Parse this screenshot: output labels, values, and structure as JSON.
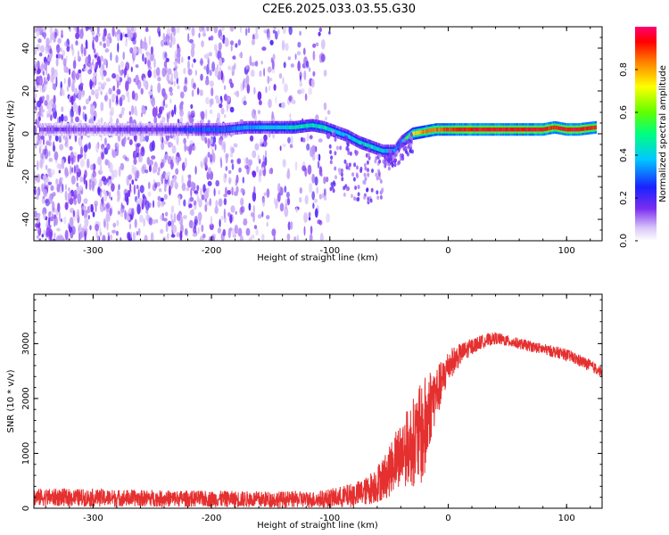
{
  "title": "C2E6.2025.033.03.55.G30",
  "colorbar": {
    "label": "Normalized spectral amplitude",
    "ticks": [
      "0.0",
      "0.2",
      "0.4",
      "0.6",
      "0.8"
    ],
    "tick_values": [
      0.0,
      0.2,
      0.4,
      0.6,
      0.8
    ],
    "range": [
      0,
      1
    ]
  },
  "colors": {
    "snr_line": "#e53030",
    "spectro_low": "#e8dcf8",
    "spectro_mid": "#7b2ff0"
  },
  "chart_data": [
    {
      "type": "heatmap",
      "name": "spectrogram",
      "xlabel": "Height of straight line (km)",
      "ylabel": "Frequency (Hz)",
      "xlim": [
        -350,
        130
      ],
      "ylim": [
        -50,
        50
      ],
      "x_ticks": [
        -300,
        -200,
        -100,
        0,
        100
      ],
      "x_tick_labels": [
        "-300",
        "-200",
        "-100",
        "0",
        "100"
      ],
      "y_ticks": [
        -40,
        -20,
        0,
        20,
        40
      ],
      "y_tick_labels": [
        "-40",
        "-20",
        "0",
        "20",
        "40"
      ],
      "noise_extent_x": [
        -350,
        -100
      ],
      "ridge": {
        "x": [
          -345,
          -330,
          -310,
          -290,
          -270,
          -250,
          -230,
          -210,
          -190,
          -170,
          -150,
          -130,
          -115,
          -105,
          -95,
          -85,
          -75,
          -65,
          -55,
          -45,
          -40,
          -35,
          -30,
          -20,
          -10,
          0,
          20,
          40,
          60,
          80,
          90,
          100,
          110,
          125
        ],
        "freq": [
          2,
          2,
          2,
          2,
          2,
          2,
          2,
          2,
          2,
          3,
          3,
          3,
          4,
          3,
          1,
          -1,
          -4,
          -6,
          -8,
          -8,
          -4,
          -2,
          0,
          1,
          2,
          2,
          2,
          2,
          2,
          2,
          3,
          2,
          2,
          3
        ],
        "amplitude": [
          0.15,
          0.15,
          0.15,
          0.15,
          0.18,
          0.18,
          0.2,
          0.3,
          0.3,
          0.35,
          0.4,
          0.45,
          0.45,
          0.45,
          0.4,
          0.4,
          0.45,
          0.45,
          0.4,
          0.35,
          0.3,
          0.55,
          0.7,
          0.85,
          0.85,
          0.9,
          0.95,
          0.95,
          0.95,
          0.95,
          0.9,
          0.95,
          0.95,
          0.9
        ]
      }
    },
    {
      "type": "line",
      "name": "snr",
      "xlabel": "Height of straight line (km)",
      "ylabel": "SNR (10 * v/v)",
      "xlim": [
        -350,
        130
      ],
      "ylim": [
        0,
        3900
      ],
      "x_ticks": [
        -300,
        -200,
        -100,
        0,
        100
      ],
      "x_tick_labels": [
        "-300",
        "-200",
        "-100",
        "0",
        "100"
      ],
      "y_ticks": [
        0,
        1000,
        2000,
        3000
      ],
      "y_tick_labels": [
        "0",
        "1000",
        "2000",
        "3000"
      ],
      "envelope": {
        "x": [
          -350,
          -300,
          -250,
          -200,
          -150,
          -110,
          -90,
          -70,
          -60,
          -50,
          -45,
          -40,
          -35,
          -30,
          -25,
          -20,
          -15,
          -10,
          -5,
          0,
          10,
          20,
          30,
          40,
          60,
          80,
          100,
          110,
          120,
          130
        ],
        "mean": [
          200,
          190,
          180,
          170,
          160,
          160,
          200,
          300,
          450,
          650,
          900,
          1000,
          1100,
          1200,
          1300,
          1400,
          1900,
          2100,
          2300,
          2600,
          2800,
          2950,
          3050,
          3100,
          3000,
          2900,
          2800,
          2700,
          2600,
          2480
        ],
        "spread": [
          160,
          160,
          150,
          150,
          150,
          150,
          200,
          250,
          350,
          450,
          550,
          600,
          700,
          800,
          900,
          1000,
          700,
          500,
          400,
          300,
          200,
          150,
          120,
          110,
          100,
          100,
          110,
          110,
          110,
          90
        ]
      }
    }
  ]
}
